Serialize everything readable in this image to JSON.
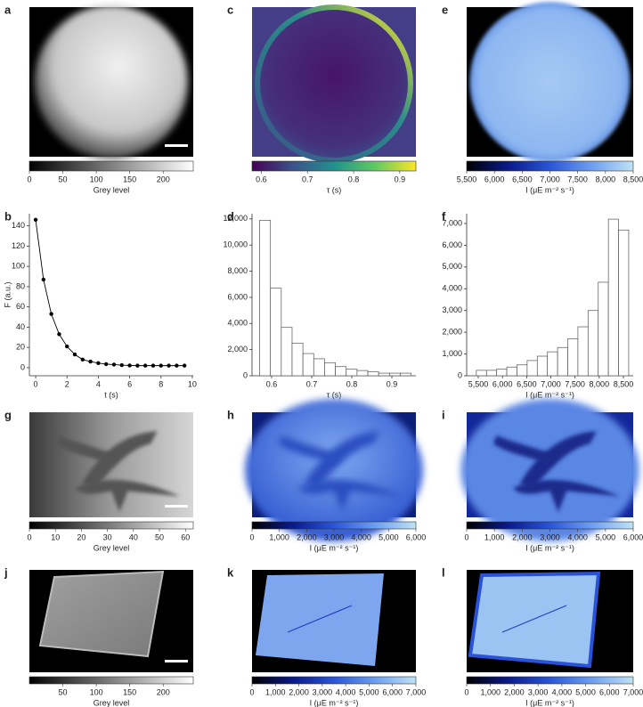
{
  "chart_data": [
    {
      "type": "image",
      "label": "a",
      "colorbar": {
        "label": "Grey level",
        "lim": [
          0,
          245
        ],
        "ticks": [
          0,
          50,
          100,
          150,
          200
        ],
        "colormap": [
          "#000000",
          "#ffffff"
        ]
      }
    },
    {
      "type": "line",
      "label": "b",
      "xlabel": "t (s)",
      "ylabel": "F (a.u.)",
      "color": "#000000",
      "x": [
        0,
        0.5,
        1,
        1.5,
        2,
        2.5,
        3,
        3.5,
        4,
        4.5,
        5,
        5.5,
        6,
        6.5,
        7,
        7.5,
        8,
        8.5,
        9,
        9.5
      ],
      "values": [
        146,
        87,
        53,
        33,
        21,
        13,
        8,
        6,
        4.5,
        3.5,
        3,
        2.5,
        2.2,
        2,
        2,
        2,
        2,
        2,
        2,
        2
      ],
      "xlim": [
        -0.4,
        10.06
      ],
      "ylim": [
        -8,
        152
      ],
      "xticks": [
        0,
        2,
        4,
        6,
        8,
        10
      ],
      "yticks": [
        0,
        20,
        40,
        60,
        80,
        100,
        120,
        140
      ]
    },
    {
      "type": "image",
      "label": "c",
      "colorbar": {
        "label": "τ (s)",
        "lim": [
          0.58,
          0.935
        ],
        "ticks": [
          0.6,
          0.7,
          0.8,
          0.9
        ],
        "colormap": [
          "#440154",
          "#3b528b",
          "#21918c",
          "#5ec962",
          "#fde725"
        ]
      }
    },
    {
      "type": "histogram",
      "label": "d",
      "xlabel": "τ (s)",
      "color": "#ffffff",
      "bins": [
        0.57,
        0.597,
        0.624,
        0.651,
        0.678,
        0.705,
        0.732,
        0.759,
        0.786,
        0.813,
        0.84,
        0.867,
        0.894,
        0.921,
        0.948
      ],
      "values": [
        11900,
        6700,
        3700,
        2500,
        1700,
        1300,
        1000,
        700,
        500,
        400,
        300,
        200,
        200,
        200
      ],
      "xlim": [
        0.551,
        0.96
      ],
      "ylim": [
        0,
        12400
      ],
      "xticks": [
        0.6,
        0.7,
        0.8,
        0.9
      ],
      "yticks": [
        0,
        {
          "value": 2000,
          "label": "2,000"
        },
        {
          "value": 4000,
          "label": "4,000"
        },
        {
          "value": 6000,
          "label": "6,000"
        },
        {
          "value": 8000,
          "label": "8,000"
        },
        {
          "value": 10000,
          "label": "10,000"
        },
        {
          "value": 12000,
          "label": "12,000"
        }
      ]
    },
    {
      "type": "image",
      "label": "e",
      "colorbar": {
        "label": "I (μE m⁻² s⁻¹)",
        "lim": [
          5500,
          8500
        ],
        "ticks": [
          {
            "value": 5500,
            "label": "5,500"
          },
          {
            "value": 6000,
            "label": "6,000"
          },
          {
            "value": 6500,
            "label": "6,500"
          },
          {
            "value": 7000,
            "label": "7,000"
          },
          {
            "value": 7500,
            "label": "7,500"
          },
          {
            "value": 8000,
            "label": "8,000"
          },
          {
            "value": 8500,
            "label": "8,500"
          }
        ],
        "colormap": [
          "#000000",
          "#0a1a8a",
          "#2a55d6",
          "#6d9ef0",
          "#bfe3f5"
        ]
      }
    },
    {
      "type": "histogram",
      "label": "f",
      "xlabel": "I (μE m⁻² s⁻¹)",
      "color": "#ffffff",
      "bins": [
        5460,
        5670,
        5880,
        6090,
        6300,
        6510,
        6720,
        6930,
        7140,
        7350,
        7560,
        7770,
        7980,
        8190,
        8400,
        8610
      ],
      "values": [
        250,
        250,
        300,
        400,
        500,
        700,
        900,
        1100,
        1300,
        1700,
        2250,
        3000,
        4300,
        7200,
        6700
      ],
      "xlim": [
        5260,
        8703
      ],
      "ylim": [
        0,
        7450
      ],
      "xticks": [
        {
          "value": 5500,
          "label": "5,500"
        },
        {
          "value": 6000,
          "label": "6,000"
        },
        {
          "value": 6500,
          "label": "6,500"
        },
        {
          "value": 7000,
          "label": "7,000"
        },
        {
          "value": 7500,
          "label": "7,500"
        },
        {
          "value": 8000,
          "label": "8,000"
        },
        {
          "value": 8500,
          "label": "8,500"
        }
      ],
      "yticks": [
        0,
        {
          "value": 1000,
          "label": "1,000"
        },
        {
          "value": 2000,
          "label": "2,000"
        },
        {
          "value": 3000,
          "label": "3,000"
        },
        {
          "value": 4000,
          "label": "4,000"
        },
        {
          "value": 5000,
          "label": "5,000"
        },
        {
          "value": 6000,
          "label": "6,000"
        },
        {
          "value": 7000,
          "label": "7,000"
        }
      ]
    },
    {
      "type": "image",
      "label": "g",
      "colorbar": {
        "label": "Grey level",
        "lim": [
          0,
          63
        ],
        "ticks": [
          0,
          10,
          20,
          30,
          40,
          50,
          60
        ],
        "colormap": [
          "#000000",
          "#ffffff"
        ]
      }
    },
    {
      "type": "image",
      "label": "h",
      "colorbar": {
        "label": "I (μE m⁻² s⁻¹)",
        "lim": [
          0,
          6000
        ],
        "ticks": [
          0,
          {
            "value": 1000,
            "label": "1,000"
          },
          {
            "value": 2000,
            "label": "2,000"
          },
          {
            "value": 3000,
            "label": "3,000"
          },
          {
            "value": 4000,
            "label": "4,000"
          },
          {
            "value": 5000,
            "label": "5,000"
          },
          {
            "value": 6000,
            "label": "6,000"
          }
        ],
        "colormap": [
          "#000000",
          "#0a1a8a",
          "#2a55d6",
          "#6d9ef0",
          "#bfe3f5"
        ]
      }
    },
    {
      "type": "image",
      "label": "i",
      "colorbar": {
        "label": "I (μE m⁻² s⁻¹)",
        "lim": [
          0,
          6000
        ],
        "ticks": [
          0,
          {
            "value": 1000,
            "label": "1,000"
          },
          {
            "value": 2000,
            "label": "2,000"
          },
          {
            "value": 3000,
            "label": "3,000"
          },
          {
            "value": 4000,
            "label": "4,000"
          },
          {
            "value": 5000,
            "label": "5,000"
          },
          {
            "value": 6000,
            "label": "6,000"
          }
        ],
        "colormap": [
          "#000000",
          "#0a1a8a",
          "#2a55d6",
          "#6d9ef0",
          "#bfe3f5"
        ]
      }
    },
    {
      "type": "image",
      "label": "j",
      "colorbar": {
        "label": "Grey level",
        "lim": [
          0,
          245
        ],
        "ticks": [
          50,
          100,
          150,
          200
        ],
        "colormap": [
          "#000000",
          "#ffffff"
        ]
      }
    },
    {
      "type": "image",
      "label": "k",
      "colorbar": {
        "label": "I (μE m⁻² s⁻¹)",
        "lim": [
          0,
          7000
        ],
        "ticks": [
          0,
          {
            "value": 1000,
            "label": "1,000"
          },
          {
            "value": 2000,
            "label": "2,000"
          },
          {
            "value": 3000,
            "label": "3,000"
          },
          {
            "value": 4000,
            "label": "4,000"
          },
          {
            "value": 5000,
            "label": "5,000"
          },
          {
            "value": 6000,
            "label": "6,000"
          },
          {
            "value": 7000,
            "label": "7,000"
          }
        ],
        "colormap": [
          "#000000",
          "#0a1a8a",
          "#2a55d6",
          "#6d9ef0",
          "#bfe3f5"
        ]
      }
    },
    {
      "type": "image",
      "label": "l",
      "colorbar": {
        "label": "I (μE m⁻² s⁻¹)",
        "lim": [
          0,
          7000
        ],
        "ticks": [
          0,
          {
            "value": 1000,
            "label": "1,000"
          },
          {
            "value": 2000,
            "label": "2,000"
          },
          {
            "value": 3000,
            "label": "3,000"
          },
          {
            "value": 4000,
            "label": "4,000"
          },
          {
            "value": 5000,
            "label": "5,000"
          },
          {
            "value": 6000,
            "label": "6,000"
          },
          {
            "value": 7000,
            "label": "7,000"
          }
        ],
        "colormap": [
          "#000000",
          "#0a1a8a",
          "#2a55d6",
          "#6d9ef0",
          "#bfe3f5"
        ]
      }
    }
  ]
}
